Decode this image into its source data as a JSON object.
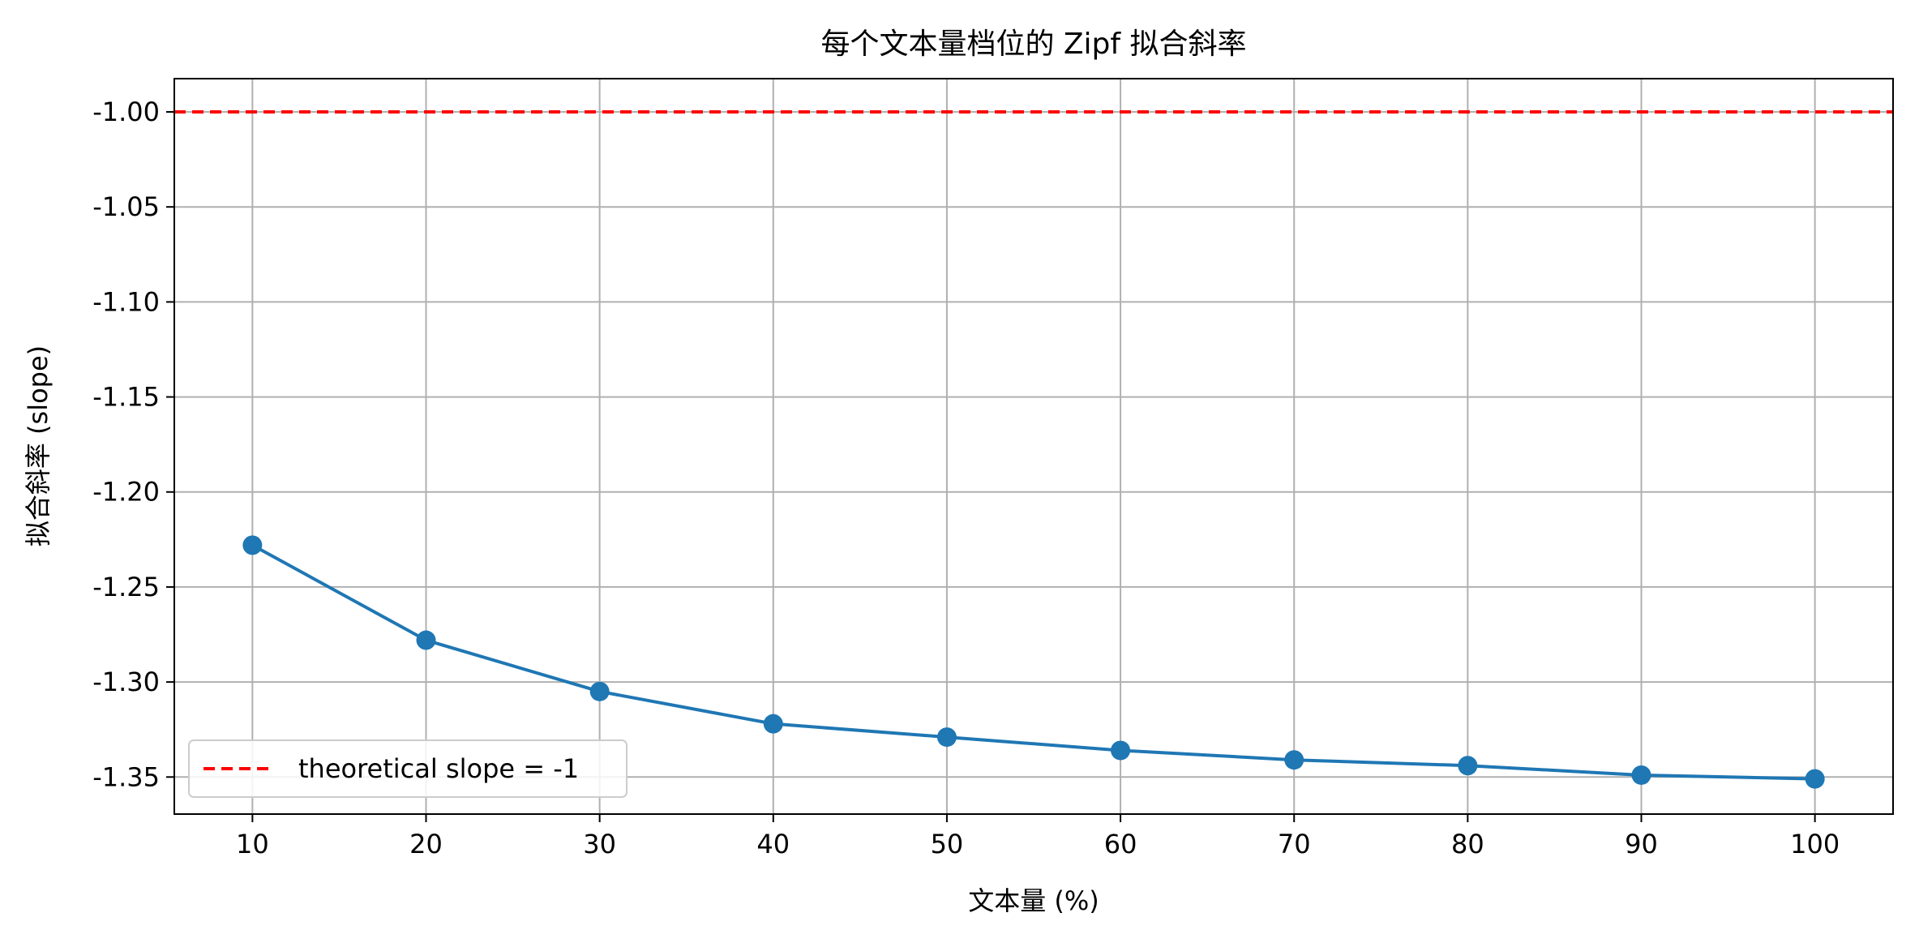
{
  "chart_data": {
    "type": "line",
    "title": "每个文本量档位的 Zipf 拟合斜率",
    "xlabel": "文本量 (%)",
    "ylabel": "拟合斜率 (slope)",
    "x": [
      10,
      20,
      30,
      40,
      50,
      60,
      70,
      80,
      90,
      100
    ],
    "series": [
      {
        "values": [
          -1.228,
          -1.278,
          -1.305,
          -1.322,
          -1.329,
          -1.336,
          -1.341,
          -1.344,
          -1.349,
          -1.351
        ],
        "color": "#1f77b4",
        "marker": "circle"
      }
    ],
    "reference_line": {
      "y": -1.0,
      "label": "theoretical slope = -1",
      "color": "#ff0000",
      "style": "dashed"
    },
    "xlim": [
      5.5,
      104.5
    ],
    "ylim": [
      -1.3695,
      -0.9825
    ],
    "xticks": [
      10,
      20,
      30,
      40,
      50,
      60,
      70,
      80,
      90,
      100
    ],
    "xtick_labels": [
      "10",
      "20",
      "30",
      "40",
      "50",
      "60",
      "70",
      "80",
      "90",
      "100"
    ],
    "yticks": [
      -1.0,
      -1.05,
      -1.1,
      -1.15,
      -1.2,
      -1.25,
      -1.3,
      -1.35
    ],
    "ytick_labels": [
      "-1.00",
      "-1.05",
      "-1.10",
      "-1.15",
      "-1.20",
      "-1.25",
      "-1.30",
      "-1.35"
    ],
    "grid": true,
    "legend_position": "lower-left"
  }
}
